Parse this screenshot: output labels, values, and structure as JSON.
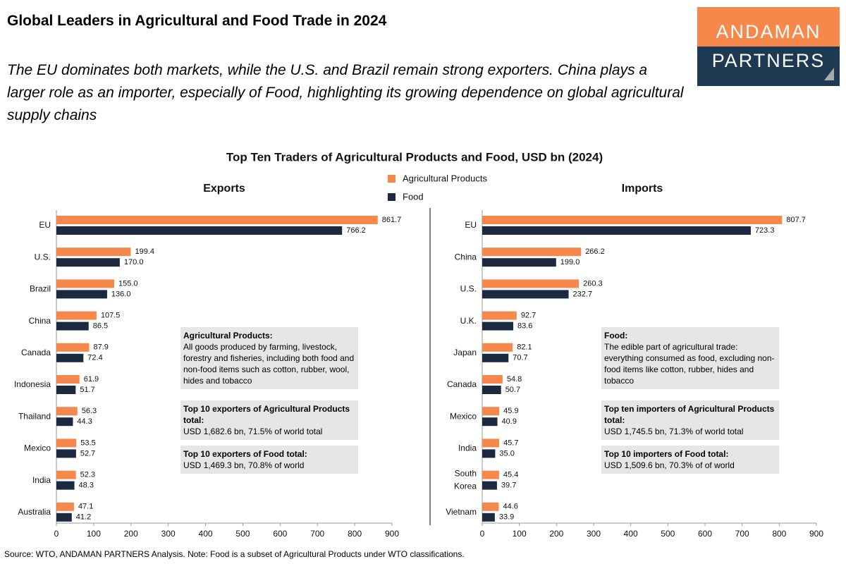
{
  "header": {
    "title": "Global Leaders in Agricultural and Food Trade in 2024",
    "subtitle": "The EU dominates both markets, while the U.S. and Brazil remain strong exporters. China plays a larger role as an importer, especially of Food, highlighting its growing dependence on global agricultural supply chains",
    "logo_top": "ANDAMAN",
    "logo_bottom": "PARTNERS"
  },
  "figure_title": "Top Ten Traders of Agricultural Products and Food, USD bn (2024)",
  "chart_data": [
    {
      "type": "bar",
      "orientation": "horizontal",
      "title": "Exports",
      "categories": [
        "EU",
        "U.S.",
        "Brazil",
        "China",
        "Canada",
        "Indonesia",
        "Thailand",
        "Mexico",
        "India",
        "Australia"
      ],
      "series": [
        {
          "name": "Agricultural Products",
          "color": "#f5884a",
          "values": [
            861.7,
            199.4,
            155.0,
            107.5,
            87.9,
            61.9,
            56.3,
            53.5,
            52.3,
            47.1
          ],
          "value_labels": [
            "861.7",
            "199.4",
            "155.0",
            "107.5",
            "87.9",
            "61.9",
            "56.3",
            "53.5",
            "52.3",
            "47.1"
          ]
        },
        {
          "name": "Food",
          "color": "#1b2a41",
          "values": [
            766.2,
            170.0,
            136.0,
            86.5,
            72.4,
            51.7,
            44.3,
            52.7,
            48.3,
            41.2
          ],
          "value_labels": [
            "766.2",
            "170.0",
            "136.0",
            "86.5",
            "72.4",
            "51.7",
            "44.3",
            "52.7",
            "48.3",
            "41.2"
          ]
        }
      ],
      "xlim": [
        0,
        900
      ],
      "xticks": [
        0,
        100,
        200,
        300,
        400,
        500,
        600,
        700,
        800,
        900
      ],
      "notes": [
        {
          "heading": "Agricultural Products:",
          "text": "All goods produced by farming, livestock, forestry and fisheries, including both food and non-food items such as cotton, rubber, wool, hides and tobacco"
        },
        {
          "heading": "Top 10 exporters of Agricultural Products total:",
          "text": "USD 1,682.6 bn, 71.5% of world total"
        },
        {
          "heading": "Top 10 exporters of Food total:",
          "text": "USD 1,469.3 bn, 70.8% of world"
        }
      ]
    },
    {
      "type": "bar",
      "orientation": "horizontal",
      "title": "Imports",
      "categories": [
        "EU",
        "China",
        "U.S.",
        "U.K.",
        "Japan",
        "Canada",
        "Mexico",
        "India",
        "South Korea",
        "Vietnam"
      ],
      "series": [
        {
          "color": "#f5884a",
          "values": [
            807.7,
            266.2,
            260.3,
            92.7,
            82.1,
            54.8,
            45.9,
            45.7,
            45.4,
            44.6
          ],
          "value_labels": [
            "807.7",
            "266.2",
            "260.3",
            "92.7",
            "82.1",
            "54.8",
            "45.9",
            "45.7",
            "45.4",
            "44.6"
          ]
        },
        {
          "color": "#1b2a41",
          "values": [
            723.3,
            199.0,
            232.7,
            83.6,
            70.7,
            50.7,
            40.9,
            35.0,
            39.7,
            33.9
          ],
          "value_labels": [
            "723.3",
            "199.0",
            "232.7",
            "83.6",
            "70.7",
            "50.7",
            "40.9",
            "35.0",
            "39.7",
            "33.9"
          ]
        }
      ],
      "xlim": [
        0,
        900
      ],
      "xticks": [
        0,
        100,
        200,
        300,
        400,
        500,
        600,
        700,
        800,
        900
      ],
      "notes": [
        {
          "heading": "Food:",
          "text": "The edible part of agricultural trade: everything consumed as food, excluding non-food items like cotton, rubber, hides and tobacco"
        },
        {
          "heading": "Top ten importers of Agricultural Products total:",
          "text": "USD 1,745.5 bn, 71.3% of world total"
        },
        {
          "heading": "Top 10 importers of Food total:",
          "text": "USD 1,509.6 bn, 70.3% of of world"
        }
      ]
    }
  ],
  "source": "Source: WTO, ANDAMAN PARTNERS Analysis. Note: Food is a subset of Agricultural Products under WTO classifications."
}
